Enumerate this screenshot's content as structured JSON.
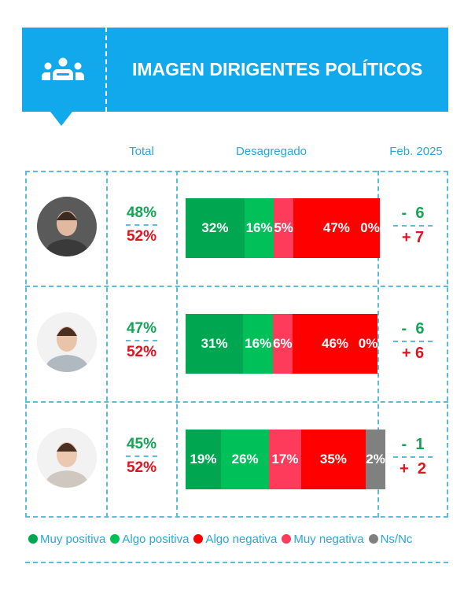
{
  "header": {
    "title": "IMAGEN DIRIGENTES POLÍTICOS",
    "icon": "people-group-icon"
  },
  "columns": {
    "total": "Total",
    "breakdown": "Desagregado",
    "change": "Feb. 2025"
  },
  "colors": {
    "muy_positiva": "#00a650",
    "algo_positiva": "#00c05a",
    "muy_negativa": "#ff3b5c",
    "algo_negativa": "#ff0000",
    "ns_nc": "#808080"
  },
  "rows": [
    {
      "positive": "48%",
      "negative": "52%",
      "breakdown": [
        {
          "key": "muy_positiva",
          "label": "32%",
          "value": 32
        },
        {
          "key": "algo_positiva",
          "label": "16%",
          "value": 16
        },
        {
          "key": "muy_negativa",
          "label": "5%",
          "value": 5
        },
        {
          "key": "algo_negativa",
          "label": "47%",
          "value": 47
        },
        {
          "key": "ns_nc",
          "label": "0%",
          "value": 0
        }
      ],
      "change_pos": "-  6",
      "change_neg": "+ 7"
    },
    {
      "positive": "47%",
      "negative": "52%",
      "breakdown": [
        {
          "key": "muy_positiva",
          "label": "31%",
          "value": 31
        },
        {
          "key": "algo_positiva",
          "label": "16%",
          "value": 16
        },
        {
          "key": "muy_negativa",
          "label": "6%",
          "value": 6
        },
        {
          "key": "algo_negativa",
          "label": "46%",
          "value": 46
        },
        {
          "key": "ns_nc",
          "label": "0%",
          "value": 0
        }
      ],
      "change_pos": "-  6",
      "change_neg": "+ 6"
    },
    {
      "positive": "45%",
      "negative": "52%",
      "breakdown": [
        {
          "key": "muy_positiva",
          "label": "19%",
          "value": 19
        },
        {
          "key": "algo_positiva",
          "label": "26%",
          "value": 26
        },
        {
          "key": "muy_negativa",
          "label": "17%",
          "value": 17
        },
        {
          "key": "algo_negativa",
          "label": "35%",
          "value": 35
        },
        {
          "key": "ns_nc",
          "label": "2%",
          "value": 2
        }
      ],
      "change_pos": "-  1",
      "change_neg": "+  2"
    }
  ],
  "legend": [
    {
      "key": "muy_positiva",
      "label": "Muy positiva"
    },
    {
      "key": "algo_positiva",
      "label": "Algo positiva"
    },
    {
      "key": "algo_negativa",
      "label": "Algo negativa"
    },
    {
      "key": "muy_negativa",
      "label": "Muy negativa"
    },
    {
      "key": "ns_nc",
      "label": "Ns/Nc"
    }
  ]
}
